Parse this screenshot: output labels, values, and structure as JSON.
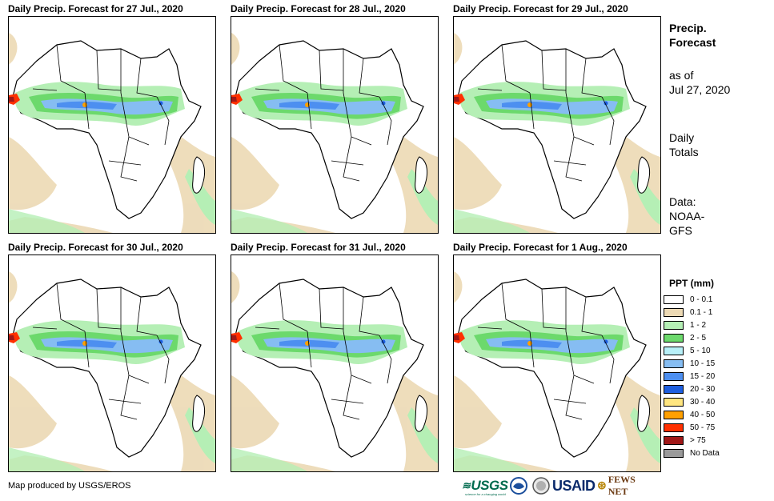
{
  "panels": [
    {
      "title": "Daily Precip. Forecast for 27 Jul., 2020"
    },
    {
      "title": "Daily Precip. Forecast for 28 Jul., 2020"
    },
    {
      "title": "Daily Precip. Forecast for 29 Jul., 2020"
    },
    {
      "title": "Daily Precip. Forecast for 30 Jul., 2020"
    },
    {
      "title": "Daily Precip. Forecast for 31 Jul., 2020"
    },
    {
      "title": "Daily Precip. Forecast for 1 Aug., 2020"
    }
  ],
  "sidebar": {
    "title_line1": "Precip.",
    "title_line2": "Forecast",
    "asof_line1": "as of",
    "asof_line2": "Jul 27, 2020",
    "totals_line1": "Daily",
    "totals_line2": "Totals",
    "data_line1": "Data:",
    "data_line2": "NOAA-",
    "data_line3": "GFS"
  },
  "legend": {
    "title": "PPT (mm)",
    "items": [
      {
        "label": "0 - 0.1",
        "color": "#ffffff"
      },
      {
        "label": "0.1 - 1",
        "color": "#ecd9b4"
      },
      {
        "label": "1 - 2",
        "color": "#b5efb5"
      },
      {
        "label": "2 - 5",
        "color": "#6cd96c"
      },
      {
        "label": "5 - 10",
        "color": "#b8f0f8"
      },
      {
        "label": "10 - 15",
        "color": "#86bdf2"
      },
      {
        "label": "15 - 20",
        "color": "#4d8ff0"
      },
      {
        "label": "20 - 30",
        "color": "#1e5fe0"
      },
      {
        "label": "30 - 40",
        "color": "#ffe680"
      },
      {
        "label": "40 - 50",
        "color": "#ffa000"
      },
      {
        "label": "50 - 75",
        "color": "#ff3000"
      },
      {
        "label": "> 75",
        "color": "#a01818"
      },
      {
        "label": "No Data",
        "color": "#9a9a9a"
      }
    ]
  },
  "footer": {
    "credit": "Map produced by USGS/EROS",
    "logos": {
      "usgs": "USGS",
      "usgs_tagline": "science for a changing world",
      "usaid": "USAID",
      "fews": "FEWS NET"
    }
  },
  "icons": [
    "usgs-logo",
    "noaa-logo-icon",
    "nasa-logo-icon",
    "usaid-logo",
    "fews-net-logo"
  ]
}
